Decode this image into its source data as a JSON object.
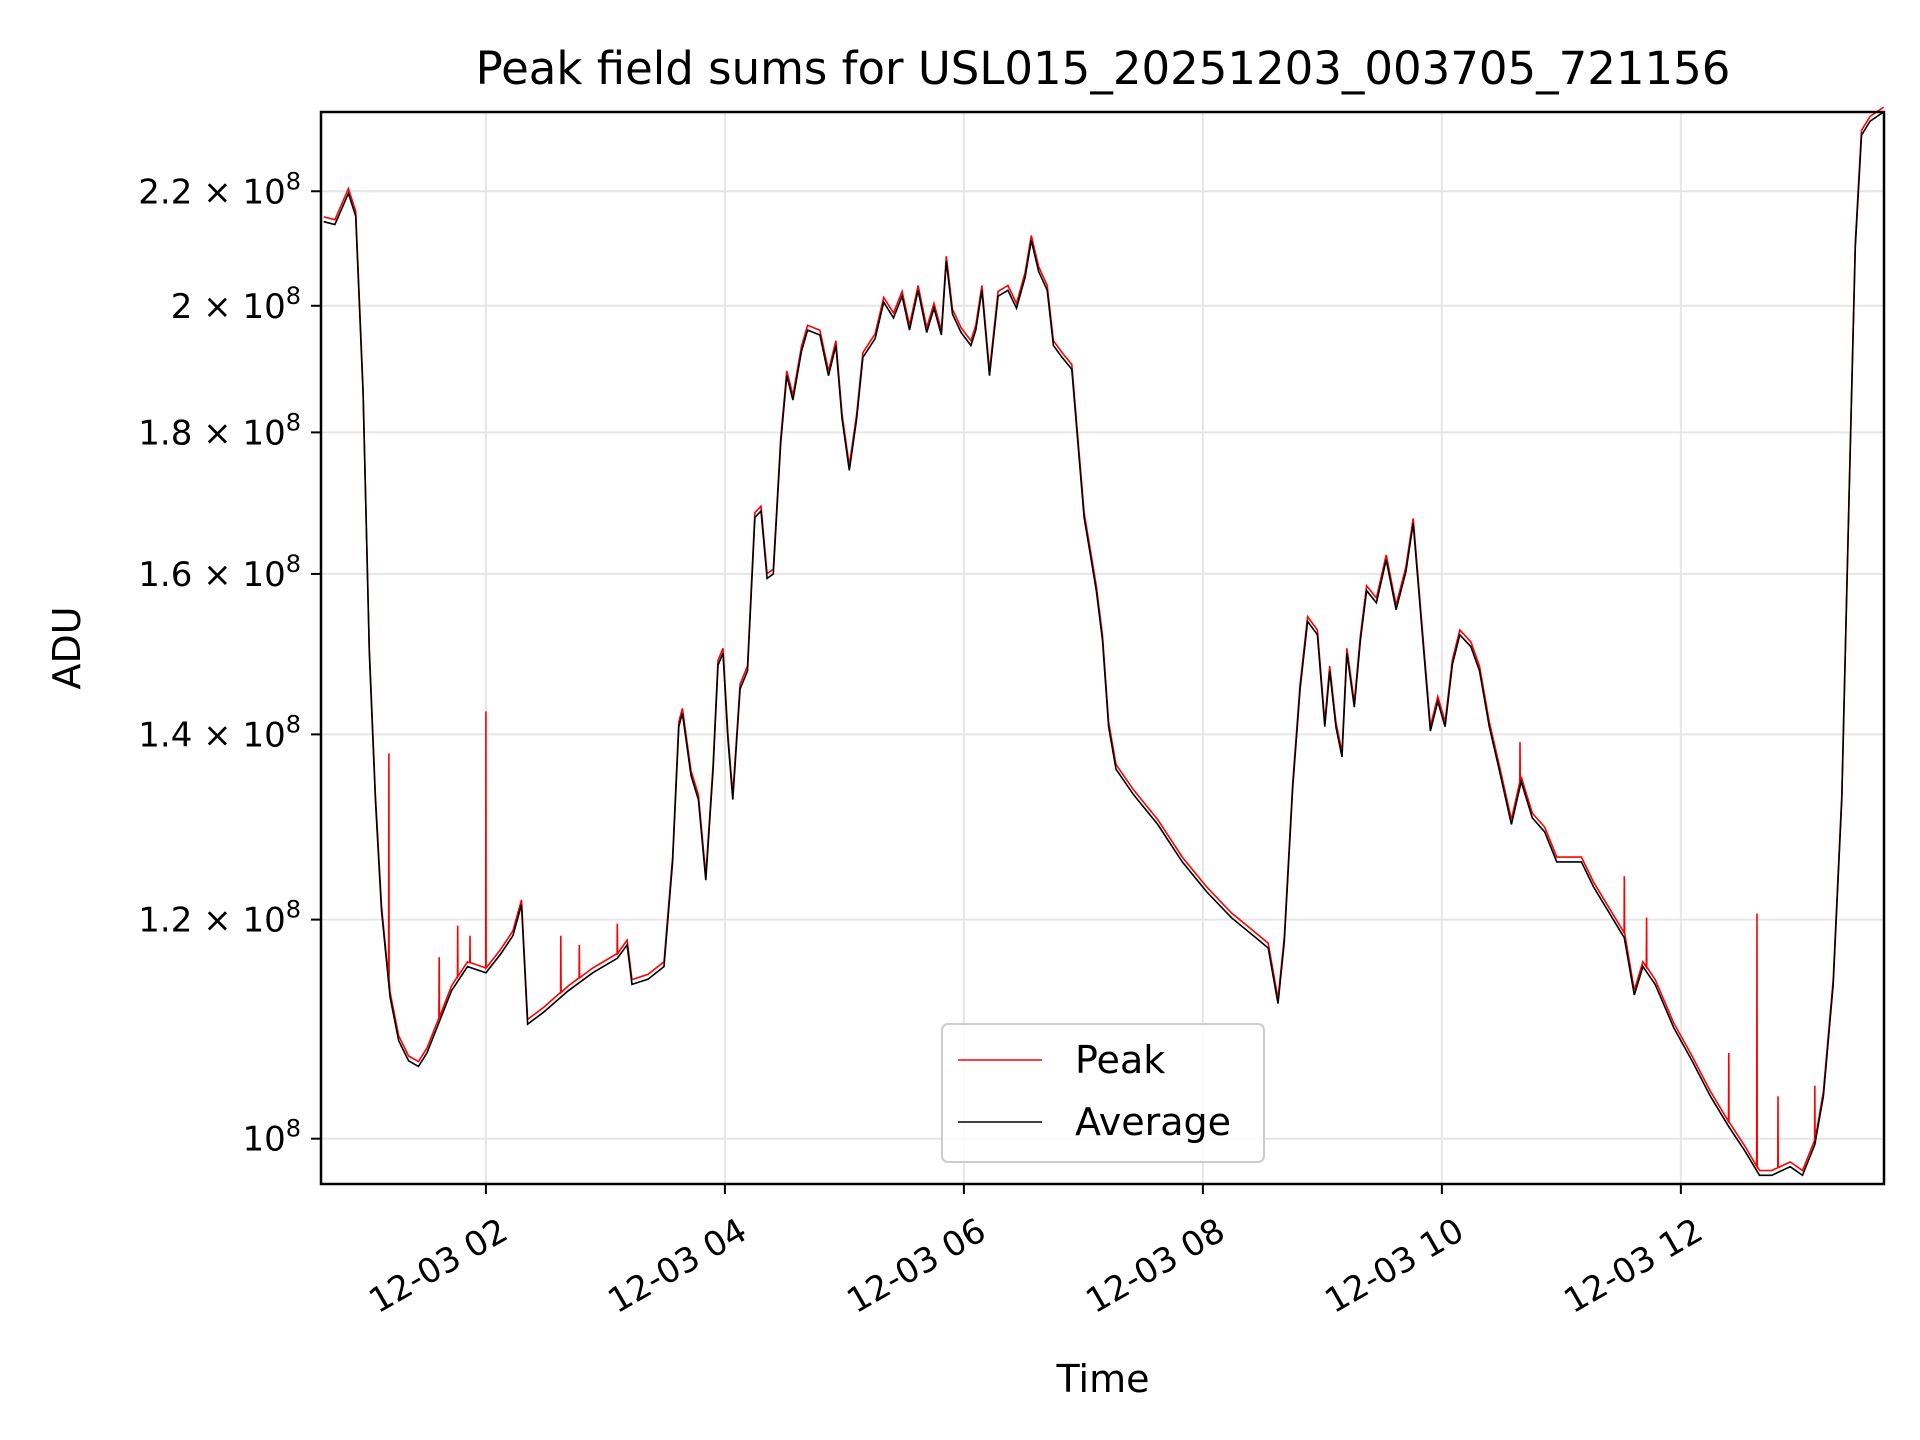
{
  "chart_data": {
    "type": "line",
    "title": "Peak field sums for USL015_20251203_003705_721156",
    "xlabel": "Time",
    "ylabel": "ADU",
    "yscale": "log",
    "ylim": [
      96300000.0,
      235000000.0
    ],
    "xlim_hours": [
      0.62,
      13.7
    ],
    "grid": true,
    "legend_placement": "lower-center",
    "colors": {
      "Peak": "#ff0000",
      "Average": "#000000",
      "grid": "#e6e6e6"
    },
    "x_ticks": [
      {
        "hour": 2,
        "label": "12-03 02"
      },
      {
        "hour": 4,
        "label": "12-03 04"
      },
      {
        "hour": 6,
        "label": "12-03 06"
      },
      {
        "hour": 8,
        "label": "12-03 08"
      },
      {
        "hour": 10,
        "label": "12-03 10"
      },
      {
        "hour": 12,
        "label": "12-03 12"
      }
    ],
    "y_ticks": [
      {
        "value": 100000000.0,
        "mantissa": "",
        "base": "10",
        "exp": "8"
      },
      {
        "value": 120000000.0,
        "mantissa": "1.2 × ",
        "base": "10",
        "exp": "8"
      },
      {
        "value": 140000000.0,
        "mantissa": "1.4 × ",
        "base": "10",
        "exp": "8"
      },
      {
        "value": 160000000.0,
        "mantissa": "1.6 × ",
        "base": "10",
        "exp": "8"
      },
      {
        "value": 180000000.0,
        "mantissa": "1.8 × ",
        "base": "10",
        "exp": "8"
      },
      {
        "value": 200000000.0,
        "mantissa": "2 × ",
        "base": "10",
        "exp": "8"
      },
      {
        "value": 220000000.0,
        "mantissa": "2.2 × ",
        "base": "10",
        "exp": "8"
      }
    ],
    "series": [
      {
        "name": "Peak",
        "tracks_average_ratio": 1.004,
        "spikes": [
          [
            1.188,
            1.378
          ],
          [
            1.609,
            1.163
          ],
          [
            1.764,
            1.194
          ],
          [
            1.867,
            1.184
          ],
          [
            2.0,
            1.427
          ],
          [
            2.627,
            1.184
          ],
          [
            2.782,
            1.175
          ],
          [
            3.1,
            1.196
          ],
          [
            10.654,
            1.391
          ],
          [
            11.527,
            1.244
          ],
          [
            11.713,
            1.202
          ],
          [
            12.401,
            1.074
          ],
          [
            12.637,
            1.206
          ],
          [
            12.813,
            1.036
          ],
          [
            13.121,
            1.045
          ]
        ]
      },
      {
        "name": "Average",
        "unit_scale": 100000000.0,
        "points": [
          [
            0.643,
            2.145
          ],
          [
            0.736,
            2.14
          ],
          [
            0.849,
            2.196
          ],
          [
            0.91,
            2.155
          ],
          [
            0.972,
            1.858
          ],
          [
            1.024,
            1.499
          ],
          [
            1.075,
            1.326
          ],
          [
            1.126,
            1.209
          ],
          [
            1.198,
            1.125
          ],
          [
            1.27,
            1.085
          ],
          [
            1.353,
            1.067
          ],
          [
            1.435,
            1.062
          ],
          [
            1.507,
            1.074
          ],
          [
            1.609,
            1.102
          ],
          [
            1.712,
            1.131
          ],
          [
            1.846,
            1.154
          ],
          [
            2.0,
            1.148
          ],
          [
            2.123,
            1.166
          ],
          [
            2.226,
            1.184
          ],
          [
            2.298,
            1.215
          ],
          [
            2.349,
            1.1
          ],
          [
            2.483,
            1.111
          ],
          [
            2.689,
            1.131
          ],
          [
            2.894,
            1.148
          ],
          [
            3.1,
            1.162
          ],
          [
            3.182,
            1.175
          ],
          [
            3.223,
            1.137
          ],
          [
            3.357,
            1.142
          ],
          [
            3.49,
            1.154
          ],
          [
            3.562,
            1.259
          ],
          [
            3.614,
            1.409
          ],
          [
            3.644,
            1.425
          ],
          [
            3.716,
            1.353
          ],
          [
            3.778,
            1.326
          ],
          [
            3.84,
            1.24
          ],
          [
            3.901,
            1.36
          ],
          [
            3.942,
            1.483
          ],
          [
            3.984,
            1.498
          ],
          [
            4.025,
            1.395
          ],
          [
            4.066,
            1.326
          ],
          [
            4.127,
            1.454
          ],
          [
            4.189,
            1.476
          ],
          [
            4.251,
            1.677
          ],
          [
            4.302,
            1.686
          ],
          [
            4.353,
            1.594
          ],
          [
            4.405,
            1.6
          ],
          [
            4.467,
            1.784
          ],
          [
            4.518,
            1.887
          ],
          [
            4.569,
            1.849
          ],
          [
            4.641,
            1.926
          ],
          [
            4.692,
            1.96
          ],
          [
            4.795,
            1.952
          ],
          [
            4.867,
            1.887
          ],
          [
            4.929,
            1.935
          ],
          [
            4.98,
            1.821
          ],
          [
            5.041,
            1.744
          ],
          [
            5.103,
            1.821
          ],
          [
            5.155,
            1.916
          ],
          [
            5.257,
            1.946
          ],
          [
            5.329,
            2.006
          ],
          [
            5.411,
            1.98
          ],
          [
            5.483,
            2.016
          ],
          [
            5.545,
            1.96
          ],
          [
            5.617,
            2.026
          ],
          [
            5.689,
            1.956
          ],
          [
            5.75,
            1.996
          ],
          [
            5.812,
            1.952
          ],
          [
            5.853,
            2.076
          ],
          [
            5.905,
            1.986
          ],
          [
            5.977,
            1.956
          ],
          [
            6.059,
            1.935
          ],
          [
            6.1,
            1.96
          ],
          [
            6.151,
            2.026
          ],
          [
            6.214,
            1.887
          ],
          [
            6.286,
            2.016
          ],
          [
            6.368,
            2.026
          ],
          [
            6.44,
            1.996
          ],
          [
            6.512,
            2.048
          ],
          [
            6.564,
            2.112
          ],
          [
            6.625,
            2.058
          ],
          [
            6.697,
            2.026
          ],
          [
            6.749,
            1.935
          ],
          [
            6.821,
            1.916
          ],
          [
            6.903,
            1.897
          ],
          [
            6.954,
            1.784
          ],
          [
            7.006,
            1.677
          ],
          [
            7.057,
            1.627
          ],
          [
            7.108,
            1.578
          ],
          [
            7.16,
            1.514
          ],
          [
            7.211,
            1.409
          ],
          [
            7.273,
            1.36
          ],
          [
            7.417,
            1.332
          ],
          [
            7.622,
            1.299
          ],
          [
            7.828,
            1.259
          ],
          [
            8.033,
            1.228
          ],
          [
            8.238,
            1.202
          ],
          [
            8.444,
            1.182
          ],
          [
            8.547,
            1.172
          ],
          [
            8.629,
            1.119
          ],
          [
            8.681,
            1.178
          ],
          [
            8.752,
            1.339
          ],
          [
            8.814,
            1.454
          ],
          [
            8.876,
            1.538
          ],
          [
            8.958,
            1.521
          ],
          [
            9.02,
            1.409
          ],
          [
            9.061,
            1.476
          ],
          [
            9.113,
            1.409
          ],
          [
            9.164,
            1.374
          ],
          [
            9.205,
            1.498
          ],
          [
            9.267,
            1.432
          ],
          [
            9.318,
            1.514
          ],
          [
            9.37,
            1.578
          ],
          [
            9.452,
            1.562
          ],
          [
            9.534,
            1.619
          ],
          [
            9.617,
            1.553
          ],
          [
            9.699,
            1.603
          ],
          [
            9.76,
            1.669
          ],
          [
            9.832,
            1.53
          ],
          [
            9.904,
            1.404
          ],
          [
            9.966,
            1.439
          ],
          [
            10.027,
            1.409
          ],
          [
            10.088,
            1.484
          ],
          [
            10.15,
            1.521
          ],
          [
            10.243,
            1.506
          ],
          [
            10.315,
            1.476
          ],
          [
            10.397,
            1.409
          ],
          [
            10.479,
            1.36
          ],
          [
            10.582,
            1.299
          ],
          [
            10.664,
            1.346
          ],
          [
            10.757,
            1.306
          ],
          [
            10.86,
            1.291
          ],
          [
            10.962,
            1.259
          ],
          [
            11.065,
            1.259
          ],
          [
            11.168,
            1.259
          ],
          [
            11.27,
            1.233
          ],
          [
            11.425,
            1.202
          ],
          [
            11.527,
            1.182
          ],
          [
            11.61,
            1.127
          ],
          [
            11.682,
            1.154
          ],
          [
            11.785,
            1.137
          ],
          [
            11.939,
            1.097
          ],
          [
            12.093,
            1.067
          ],
          [
            12.247,
            1.036
          ],
          [
            12.401,
            1.01
          ],
          [
            12.535,
            0.99
          ],
          [
            12.658,
            0.97
          ],
          [
            12.761,
            0.97
          ],
          [
            12.915,
            0.977
          ],
          [
            13.018,
            0.97
          ],
          [
            13.121,
            0.995
          ],
          [
            13.193,
            1.036
          ],
          [
            13.275,
            1.137
          ],
          [
            13.347,
            1.326
          ],
          [
            13.409,
            1.712
          ],
          [
            13.46,
            2.1
          ],
          [
            13.512,
            2.305
          ],
          [
            13.584,
            2.332
          ],
          [
            13.697,
            2.35
          ]
        ]
      }
    ],
    "legend": [
      {
        "label": "Peak"
      },
      {
        "label": "Average"
      }
    ]
  }
}
